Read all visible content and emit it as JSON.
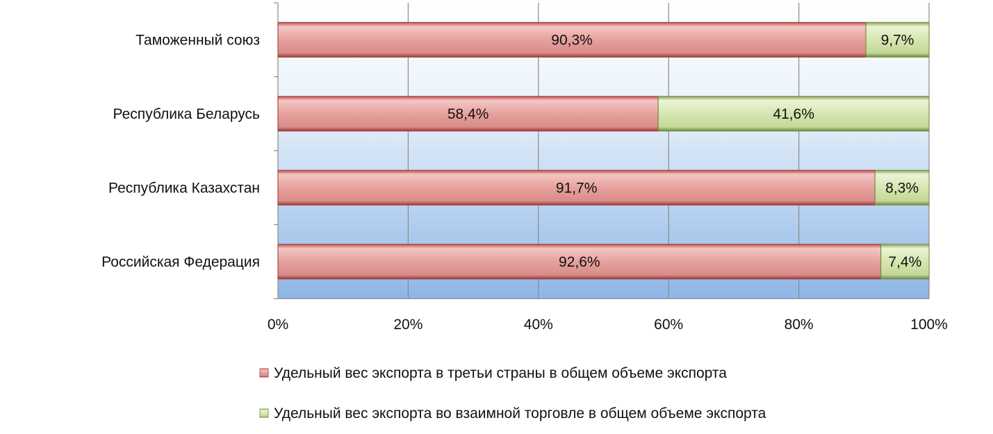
{
  "chart_data": {
    "type": "bar",
    "orientation": "horizontal",
    "stacked": "percent",
    "categories": [
      "Таможенный союз",
      "Республика Беларусь",
      "Республика Казахстан",
      "Российская Федерация"
    ],
    "series": [
      {
        "name": "Удельный вес экспорта в третьи страны в общем объеме экспорта",
        "values": [
          90.3,
          58.4,
          91.7,
          92.6
        ],
        "labels": [
          "90,3%",
          "58,4%",
          "91,7%",
          "92,6%"
        ],
        "color": "#e6a19d"
      },
      {
        "name": "Удельный вес экспорта во взаимной торговле в общем объеме экспорта",
        "values": [
          9.7,
          41.6,
          8.3,
          7.4
        ],
        "labels": [
          "9,7%",
          "41,6%",
          "8,3%",
          "7,4%"
        ],
        "color": "#d6e6b0"
      }
    ],
    "x_ticks": [
      "0%",
      "20%",
      "40%",
      "60%",
      "80%",
      "100%"
    ],
    "xlim": [
      0,
      100
    ],
    "grid": true,
    "legend_position": "bottom",
    "plot_background": "gradient light-to-blue"
  }
}
